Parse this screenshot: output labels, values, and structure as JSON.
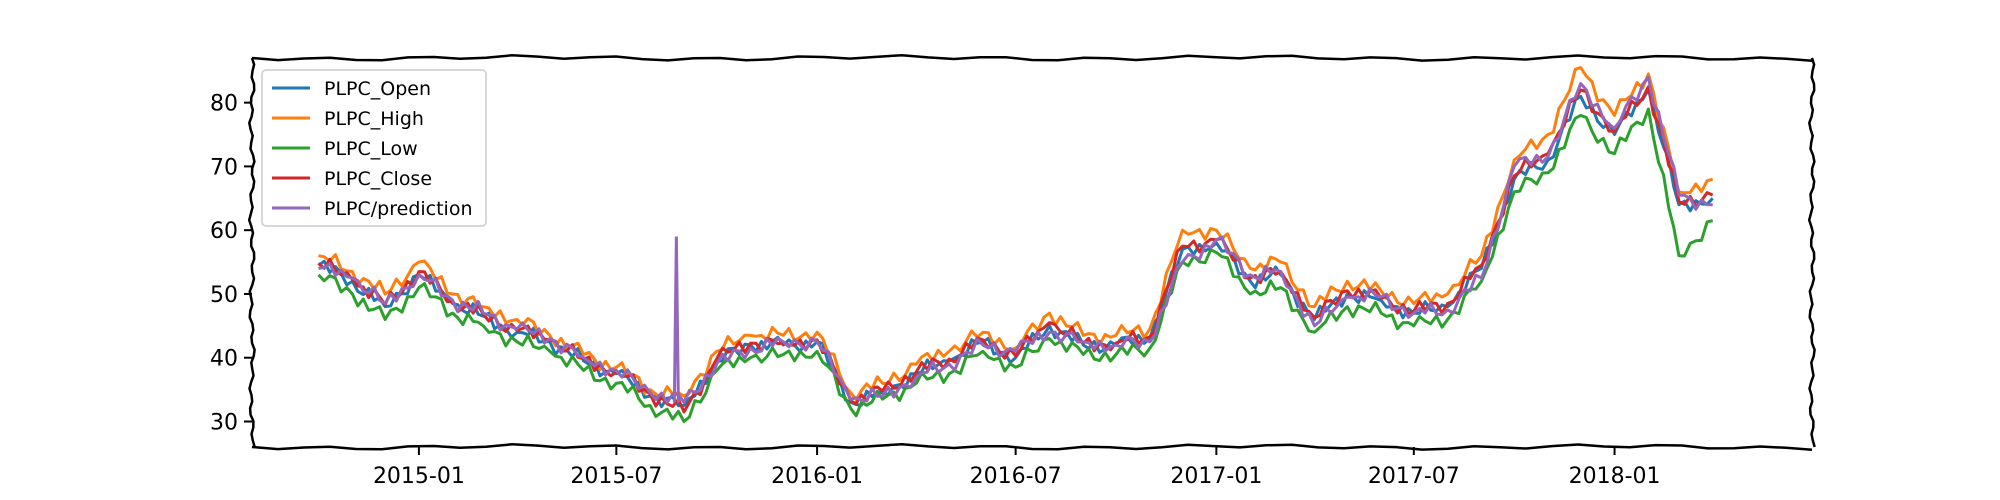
{
  "chart_data": {
    "type": "line",
    "title": "",
    "xlabel": "",
    "ylabel": "",
    "x_ticks": [
      "2015-01",
      "2015-07",
      "2016-01",
      "2016-07",
      "2017-01",
      "2017-07",
      "2018-01"
    ],
    "y_ticks": [
      30,
      40,
      50,
      60,
      70,
      80
    ],
    "xlim": [
      "2014-08-01",
      "2018-07-01"
    ],
    "ylim": [
      26,
      87
    ],
    "grid": false,
    "legend_position": "top-left",
    "x": [
      "2014-10-01",
      "2014-11-01",
      "2014-12-01",
      "2015-01-01",
      "2015-02-01",
      "2015-03-01",
      "2015-04-01",
      "2015-05-01",
      "2015-06-01",
      "2015-07-01",
      "2015-08-01",
      "2015-09-01",
      "2015-10-01",
      "2015-11-01",
      "2015-12-01",
      "2016-01-01",
      "2016-02-01",
      "2016-03-01",
      "2016-04-01",
      "2016-05-01",
      "2016-06-01",
      "2016-07-01",
      "2016-08-01",
      "2016-09-01",
      "2016-10-01",
      "2016-11-01",
      "2016-12-01",
      "2017-01-01",
      "2017-02-01",
      "2017-03-01",
      "2017-04-01",
      "2017-05-01",
      "2017-06-01",
      "2017-07-01",
      "2017-08-01",
      "2017-09-01",
      "2017-10-01",
      "2017-11-01",
      "2017-12-01",
      "2018-01-01",
      "2018-02-01",
      "2018-03-01",
      "2018-04-01"
    ],
    "series": [
      {
        "name": "PLPC_Open",
        "color": "#1f77b4",
        "values": [
          54.5,
          52.0,
          48.0,
          53.0,
          48.5,
          46.5,
          44.0,
          42.5,
          39.5,
          37.5,
          34.0,
          32.5,
          39.5,
          42.0,
          42.0,
          42.5,
          33.0,
          34.5,
          37.5,
          39.5,
          42.5,
          40.0,
          45.0,
          42.0,
          42.0,
          43.0,
          57.0,
          58.0,
          52.0,
          53.0,
          46.0,
          50.0,
          49.0,
          47.0,
          48.0,
          54.0,
          68.0,
          71.0,
          81.0,
          75.0,
          82.0,
          64.0,
          65.0
        ]
      },
      {
        "name": "PLPC_High",
        "color": "#ff7f0e",
        "values": [
          56.0,
          53.5,
          50.0,
          55.0,
          50.0,
          48.0,
          46.0,
          43.5,
          40.5,
          38.5,
          35.0,
          34.0,
          41.0,
          43.5,
          43.5,
          44.0,
          34.5,
          36.0,
          39.0,
          41.0,
          44.0,
          41.5,
          47.0,
          43.5,
          43.5,
          44.5,
          60.0,
          60.0,
          54.0,
          55.0,
          48.0,
          52.0,
          50.5,
          48.5,
          50.0,
          56.0,
          71.0,
          75.0,
          85.5,
          78.0,
          84.5,
          66.0,
          68.0
        ]
      },
      {
        "name": "PLPC_Low",
        "color": "#2ca02c",
        "values": [
          53.0,
          50.0,
          46.0,
          51.0,
          47.0,
          45.0,
          42.5,
          41.0,
          38.0,
          36.0,
          32.5,
          30.0,
          38.0,
          40.0,
          40.5,
          41.0,
          32.0,
          33.5,
          36.0,
          37.5,
          41.0,
          38.5,
          43.0,
          40.5,
          40.5,
          41.5,
          55.0,
          56.5,
          50.0,
          51.0,
          44.0,
          48.0,
          47.0,
          45.0,
          46.0,
          52.0,
          66.0,
          69.0,
          78.0,
          72.0,
          79.0,
          56.0,
          61.5
        ]
      },
      {
        "name": "PLPC_Close",
        "color": "#d62728",
        "values": [
          54.8,
          52.3,
          48.3,
          53.5,
          48.8,
          46.8,
          44.3,
          42.8,
          39.8,
          37.8,
          34.3,
          31.5,
          39.8,
          42.3,
          42.3,
          42.8,
          33.2,
          34.8,
          37.8,
          39.8,
          42.8,
          40.3,
          45.5,
          42.3,
          42.3,
          43.3,
          57.5,
          58.5,
          52.5,
          53.5,
          46.3,
          50.5,
          49.3,
          47.3,
          48.5,
          54.5,
          68.5,
          72.0,
          82.0,
          75.5,
          82.5,
          64.5,
          65.5
        ]
      },
      {
        "name": "PLPC/prediction",
        "color": "#9467bd",
        "values": [
          54.0,
          52.5,
          48.5,
          53.0,
          49.0,
          47.0,
          44.5,
          43.0,
          40.0,
          38.0,
          34.5,
          33.0,
          39.0,
          41.5,
          42.5,
          42.5,
          33.5,
          34.0,
          37.0,
          39.0,
          42.0,
          41.0,
          44.0,
          42.5,
          42.0,
          42.5,
          55.0,
          58.5,
          53.0,
          53.5,
          45.0,
          49.5,
          49.5,
          47.0,
          47.5,
          52.5,
          70.0,
          71.5,
          83.0,
          76.0,
          84.0,
          65.5,
          64.0
        ]
      }
    ],
    "annotations": [
      {
        "series": "PLPC/prediction",
        "x": "2015-08-25",
        "y": 59
      }
    ]
  }
}
